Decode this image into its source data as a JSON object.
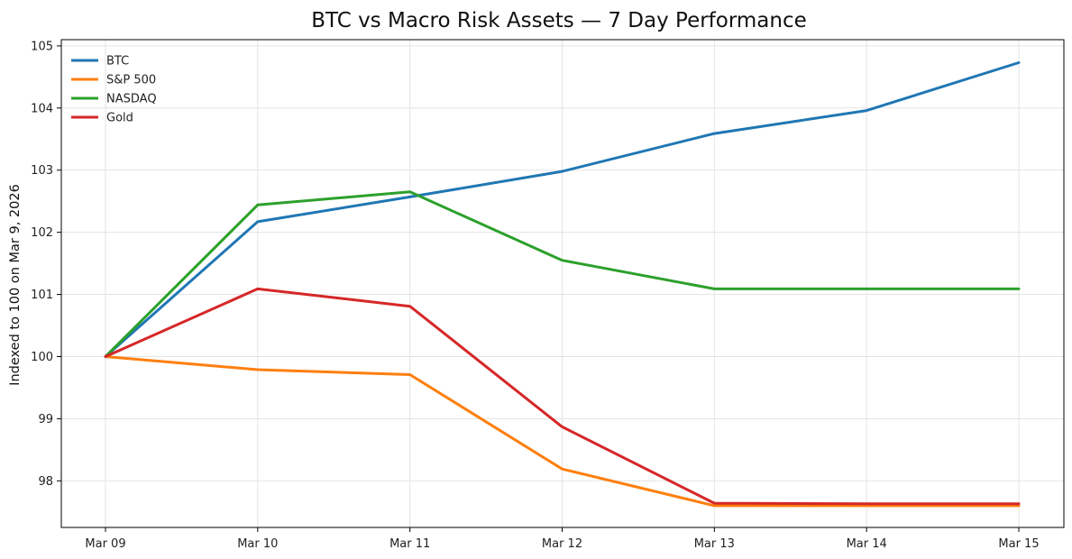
{
  "chart_data": {
    "type": "line",
    "title": "BTC vs Macro Risk Assets — 7 Day Performance",
    "xlabel": "",
    "ylabel": "Indexed to 100 on Mar 9, 2026",
    "categories": [
      "Mar 09",
      "Mar 10",
      "Mar 11",
      "Mar 12",
      "Mar 13",
      "Mar 14",
      "Mar 15"
    ],
    "yticks": [
      98,
      99,
      100,
      101,
      102,
      103,
      104,
      105
    ],
    "ylim": [
      97.25,
      105.1
    ],
    "grid": true,
    "legend_position": "top-left",
    "series": [
      {
        "name": "BTC",
        "color": "#1f77b4",
        "values": [
          100.0,
          102.17,
          102.57,
          102.98,
          103.59,
          103.96,
          104.73
        ]
      },
      {
        "name": "S&P 500",
        "color": "#ff7f0e",
        "values": [
          100.0,
          99.79,
          99.71,
          98.19,
          97.6,
          97.6,
          97.6
        ]
      },
      {
        "name": "NASDAQ",
        "color": "#2ca02c",
        "values": [
          100.0,
          102.44,
          102.65,
          101.55,
          101.09,
          101.09,
          101.09
        ]
      },
      {
        "name": "Gold",
        "color": "#d62728",
        "values": [
          100.0,
          101.09,
          100.81,
          98.87,
          97.64,
          97.63,
          97.63
        ]
      }
    ]
  }
}
